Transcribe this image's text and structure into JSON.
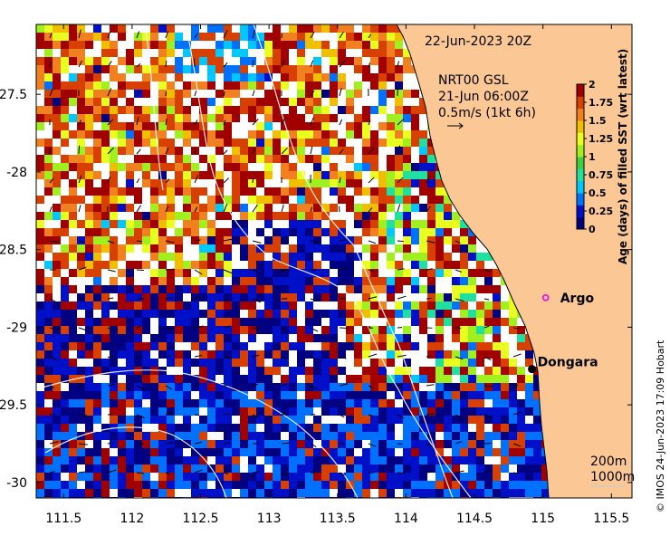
{
  "map": {
    "date_label": "22-Jun-2023 20Z",
    "product_line1": "NRT00 GSL",
    "product_line2": "21-Jun 06:00Z",
    "product_line3": "0.5m/s (1kt 6h)",
    "places": [
      {
        "name": "Argo",
        "lon": 115.02,
        "lat": -28.81,
        "marker": "circle",
        "color": "#e600e6"
      },
      {
        "name": "Dongara",
        "lon": 114.92,
        "lat": -29.27,
        "marker": "dot",
        "color": "#000000"
      }
    ],
    "isobaths": [
      "200m",
      "1000m"
    ],
    "credit": "© IMOS 24-Jun-2023 17:09 Hobart",
    "x_ticks": [
      "111.5",
      "112",
      "112.5",
      "113",
      "113.5",
      "114",
      "114.5",
      "115",
      "115.5"
    ],
    "x_tick_values": [
      111.5,
      112,
      112.5,
      113,
      113.5,
      114,
      114.5,
      115,
      115.5
    ],
    "y_ticks": [
      "-27.5",
      "-28",
      "-28.5",
      "-29",
      "-29.5",
      "-30"
    ],
    "y_tick_values": [
      -27.5,
      -28,
      -28.5,
      -29,
      -29.5,
      -30
    ],
    "lon_range": [
      111.3,
      115.65
    ],
    "lat_range": [
      -30.1,
      -27.05
    ],
    "land_color": "#fbc794"
  },
  "colorbar": {
    "title": "Age (days) of filled SST (wrt latest)",
    "range": [
      0,
      2
    ],
    "ticks": [
      "0",
      "0.25",
      "0.5",
      "0.75",
      "1",
      "1.25",
      "1.5",
      "1.75",
      "2"
    ],
    "tick_values": [
      0,
      0.25,
      0.5,
      0.75,
      1,
      1.25,
      1.5,
      1.75,
      2
    ],
    "colors": [
      "#000080",
      "#0010c8",
      "#0070ff",
      "#00c8ff",
      "#20e0a0",
      "#40d040",
      "#a0f020",
      "#e8ff20",
      "#f0c000",
      "#f08020",
      "#d84000",
      "#a00000"
    ]
  }
}
